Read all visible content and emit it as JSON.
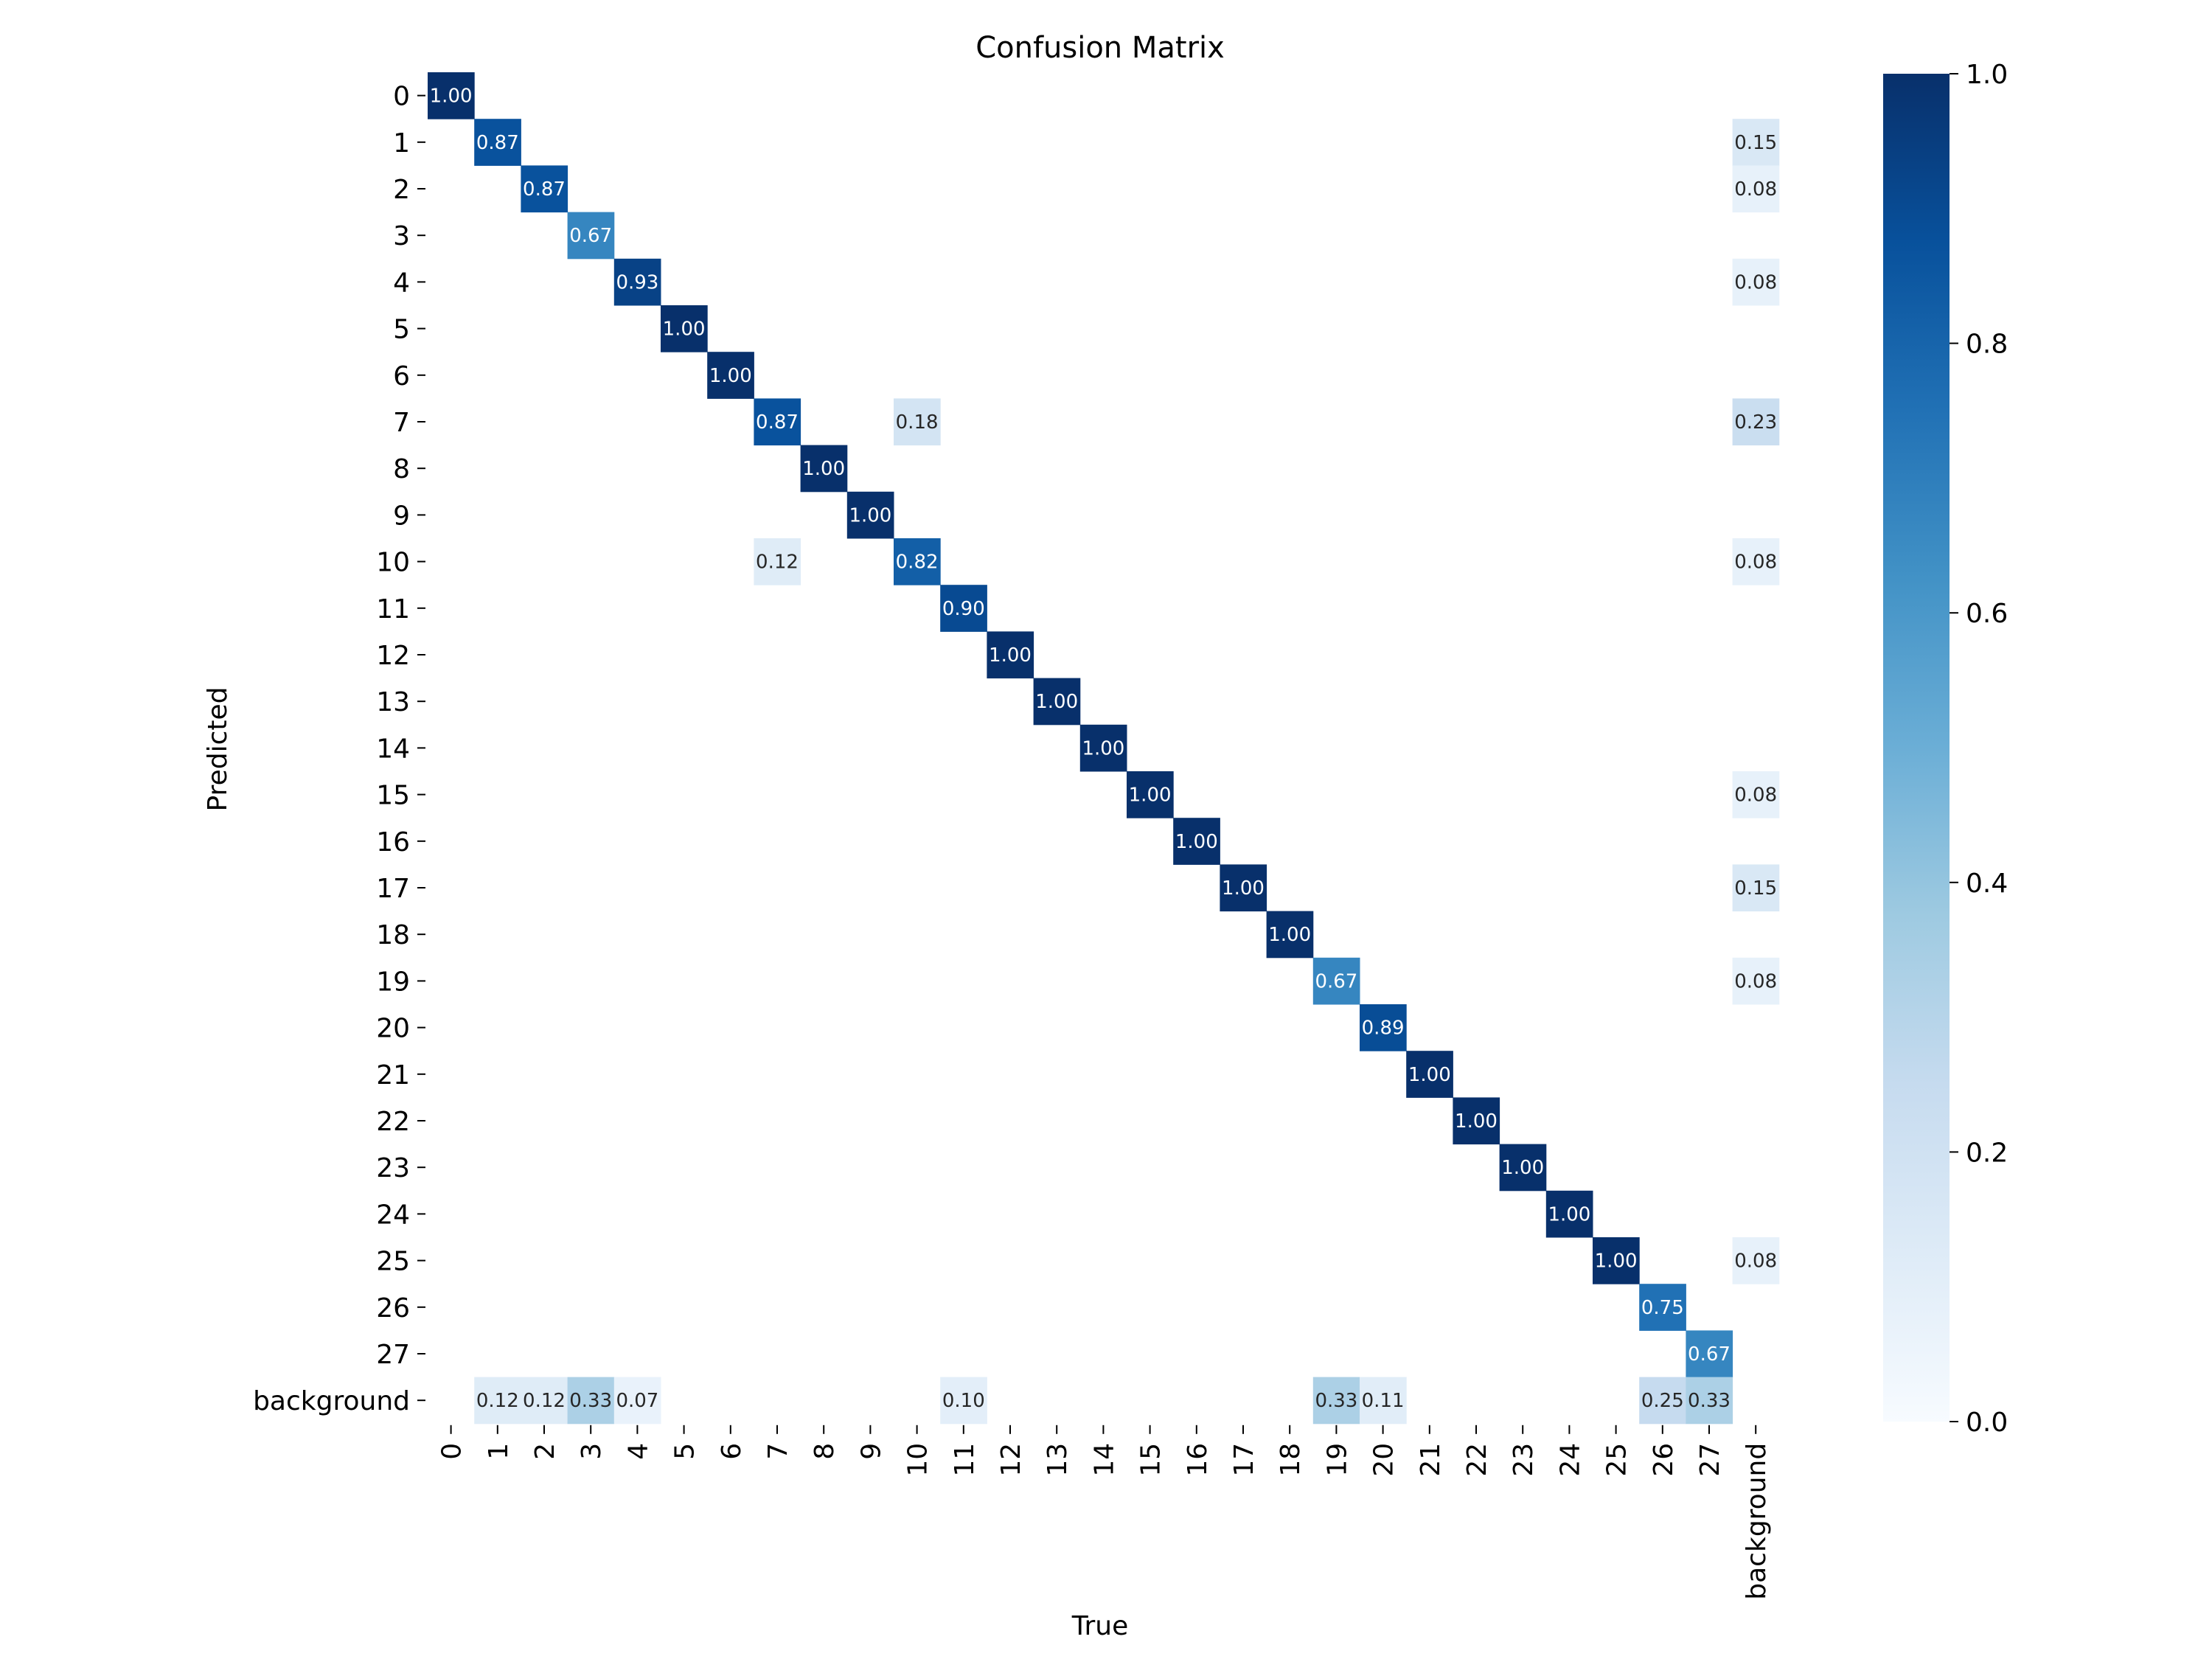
{
  "chart_data": {
    "type": "heatmap",
    "title": "Confusion Matrix",
    "xlabel": "True",
    "ylabel": "Predicted",
    "x_categories": [
      "0",
      "1",
      "2",
      "3",
      "4",
      "5",
      "6",
      "7",
      "8",
      "9",
      "10",
      "11",
      "12",
      "13",
      "14",
      "15",
      "16",
      "17",
      "18",
      "19",
      "20",
      "21",
      "22",
      "23",
      "24",
      "25",
      "26",
      "27",
      "background"
    ],
    "y_categories": [
      "0",
      "1",
      "2",
      "3",
      "4",
      "5",
      "6",
      "7",
      "8",
      "9",
      "10",
      "11",
      "12",
      "13",
      "14",
      "15",
      "16",
      "17",
      "18",
      "19",
      "20",
      "21",
      "22",
      "23",
      "24",
      "25",
      "26",
      "27",
      "background"
    ],
    "cells": [
      {
        "true": "0",
        "predicted": "0",
        "value": 1.0,
        "label": "1.00"
      },
      {
        "true": "1",
        "predicted": "1",
        "value": 0.87,
        "label": "0.87"
      },
      {
        "true": "background",
        "predicted": "1",
        "value": 0.15,
        "label": "0.15"
      },
      {
        "true": "2",
        "predicted": "2",
        "value": 0.87,
        "label": "0.87"
      },
      {
        "true": "background",
        "predicted": "2",
        "value": 0.08,
        "label": "0.08"
      },
      {
        "true": "3",
        "predicted": "3",
        "value": 0.67,
        "label": "0.67"
      },
      {
        "true": "4",
        "predicted": "4",
        "value": 0.93,
        "label": "0.93"
      },
      {
        "true": "background",
        "predicted": "4",
        "value": 0.08,
        "label": "0.08"
      },
      {
        "true": "5",
        "predicted": "5",
        "value": 1.0,
        "label": "1.00"
      },
      {
        "true": "6",
        "predicted": "6",
        "value": 1.0,
        "label": "1.00"
      },
      {
        "true": "7",
        "predicted": "7",
        "value": 0.87,
        "label": "0.87"
      },
      {
        "true": "10",
        "predicted": "7",
        "value": 0.18,
        "label": "0.18"
      },
      {
        "true": "background",
        "predicted": "7",
        "value": 0.23,
        "label": "0.23"
      },
      {
        "true": "8",
        "predicted": "8",
        "value": 1.0,
        "label": "1.00"
      },
      {
        "true": "9",
        "predicted": "9",
        "value": 1.0,
        "label": "1.00"
      },
      {
        "true": "7",
        "predicted": "10",
        "value": 0.12,
        "label": "0.12"
      },
      {
        "true": "10",
        "predicted": "10",
        "value": 0.82,
        "label": "0.82"
      },
      {
        "true": "background",
        "predicted": "10",
        "value": 0.08,
        "label": "0.08"
      },
      {
        "true": "11",
        "predicted": "11",
        "value": 0.9,
        "label": "0.90"
      },
      {
        "true": "12",
        "predicted": "12",
        "value": 1.0,
        "label": "1.00"
      },
      {
        "true": "13",
        "predicted": "13",
        "value": 1.0,
        "label": "1.00"
      },
      {
        "true": "14",
        "predicted": "14",
        "value": 1.0,
        "label": "1.00"
      },
      {
        "true": "15",
        "predicted": "15",
        "value": 1.0,
        "label": "1.00"
      },
      {
        "true": "background",
        "predicted": "15",
        "value": 0.08,
        "label": "0.08"
      },
      {
        "true": "16",
        "predicted": "16",
        "value": 1.0,
        "label": "1.00"
      },
      {
        "true": "17",
        "predicted": "17",
        "value": 1.0,
        "label": "1.00"
      },
      {
        "true": "background",
        "predicted": "17",
        "value": 0.15,
        "label": "0.15"
      },
      {
        "true": "18",
        "predicted": "18",
        "value": 1.0,
        "label": "1.00"
      },
      {
        "true": "19",
        "predicted": "19",
        "value": 0.67,
        "label": "0.67"
      },
      {
        "true": "background",
        "predicted": "19",
        "value": 0.08,
        "label": "0.08"
      },
      {
        "true": "20",
        "predicted": "20",
        "value": 0.89,
        "label": "0.89"
      },
      {
        "true": "21",
        "predicted": "21",
        "value": 1.0,
        "label": "1.00"
      },
      {
        "true": "22",
        "predicted": "22",
        "value": 1.0,
        "label": "1.00"
      },
      {
        "true": "23",
        "predicted": "23",
        "value": 1.0,
        "label": "1.00"
      },
      {
        "true": "24",
        "predicted": "24",
        "value": 1.0,
        "label": "1.00"
      },
      {
        "true": "25",
        "predicted": "25",
        "value": 1.0,
        "label": "1.00"
      },
      {
        "true": "background",
        "predicted": "25",
        "value": 0.08,
        "label": "0.08"
      },
      {
        "true": "26",
        "predicted": "26",
        "value": 0.75,
        "label": "0.75"
      },
      {
        "true": "27",
        "predicted": "27",
        "value": 0.67,
        "label": "0.67"
      },
      {
        "true": "1",
        "predicted": "background",
        "value": 0.12,
        "label": "0.12"
      },
      {
        "true": "2",
        "predicted": "background",
        "value": 0.12,
        "label": "0.12"
      },
      {
        "true": "3",
        "predicted": "background",
        "value": 0.33,
        "label": "0.33"
      },
      {
        "true": "4",
        "predicted": "background",
        "value": 0.07,
        "label": "0.07"
      },
      {
        "true": "11",
        "predicted": "background",
        "value": 0.1,
        "label": "0.10"
      },
      {
        "true": "19",
        "predicted": "background",
        "value": 0.33,
        "label": "0.33"
      },
      {
        "true": "20",
        "predicted": "background",
        "value": 0.11,
        "label": "0.11"
      },
      {
        "true": "26",
        "predicted": "background",
        "value": 0.25,
        "label": "0.25"
      },
      {
        "true": "27",
        "predicted": "background",
        "value": 0.33,
        "label": "0.33"
      }
    ],
    "colorbar": {
      "range": [
        0.0,
        1.0
      ],
      "ticks": [
        "0.0",
        "0.2",
        "0.4",
        "0.6",
        "0.8",
        "1.0"
      ],
      "colormap": [
        "#f7fbff",
        "#deebf7",
        "#c6dbef",
        "#9ecae1",
        "#6baed6",
        "#4292c6",
        "#2171b5",
        "#08519c",
        "#08306b"
      ]
    },
    "grid": false
  }
}
